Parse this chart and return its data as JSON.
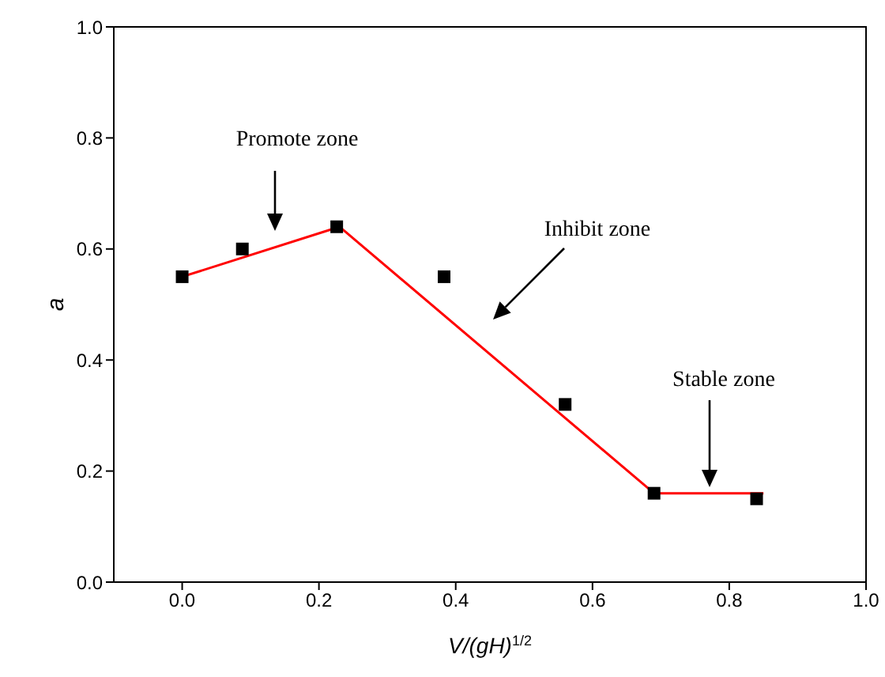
{
  "chart_data": {
    "type": "scatter",
    "xlabel": "V/(gH)$^{1/2}$",
    "ylabel": "a",
    "xlim": [
      -0.1,
      1.0
    ],
    "xticks": [
      {
        "value": 0,
        "label": "0.0"
      },
      0.2,
      0.4,
      0.6,
      0.8,
      {
        "value": 1,
        "label": "1.0"
      }
    ],
    "ylim": [
      0.0,
      1.0
    ],
    "yticks": [
      {
        "value": 0,
        "label": "0.0"
      },
      0.2,
      0.4,
      0.6,
      0.8,
      {
        "value": 1,
        "label": "1.0"
      }
    ],
    "series": [
      {
        "color": "#000000",
        "marker": "square",
        "x": [
          0,
          0.088,
          0.226,
          0.383,
          0.56,
          0.69,
          0.84
        ],
        "values": [
          0.55,
          0.6,
          0.64,
          0.55,
          0.32,
          0.16,
          0.15
        ]
      },
      {
        "type": "line",
        "color": "#ff0000",
        "marker": "none",
        "x": [
          0,
          0.23,
          0.69,
          0.85
        ],
        "values": [
          0.55,
          0.64,
          0.16,
          0.16
        ]
      }
    ],
    "annotations": [
      "Promote zone",
      "Inhibit zone",
      "Stable zone"
    ]
  }
}
